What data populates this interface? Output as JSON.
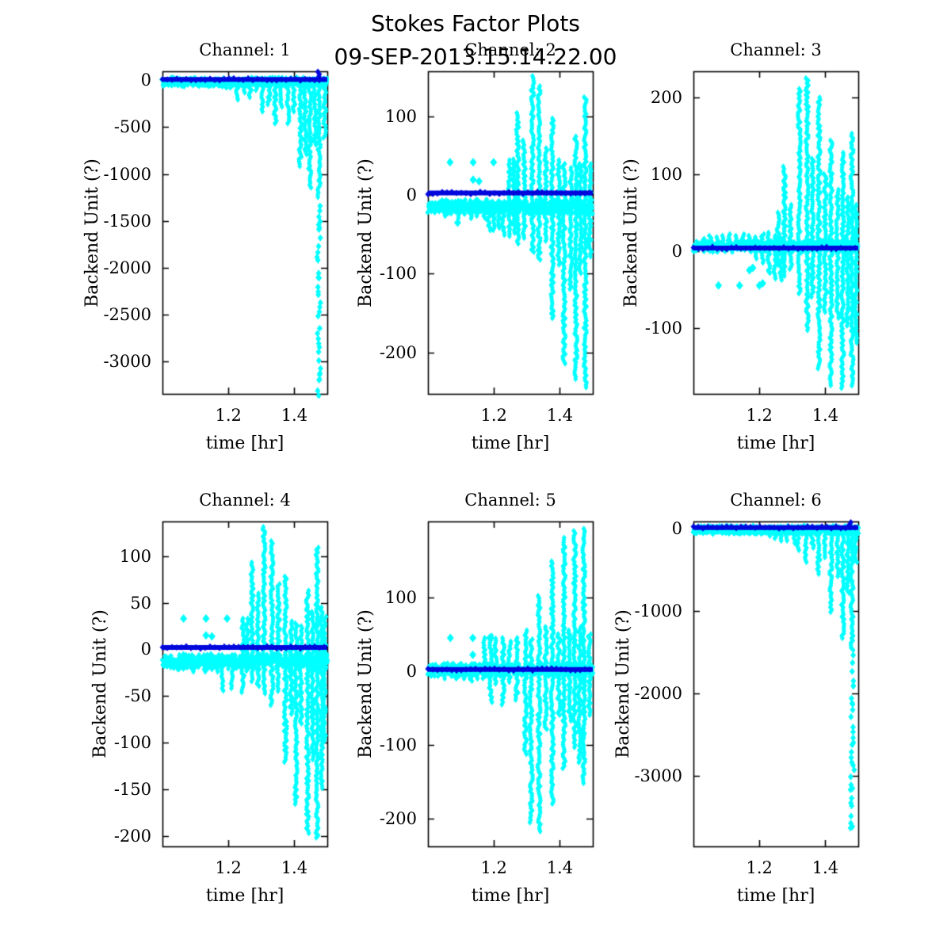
{
  "figure": {
    "title": "Stokes Factor Plots",
    "subtitle": "09-SEP-2013.15.14.22.00",
    "background": "#FFFFFF",
    "marker_color": "#00FFFF",
    "mean_line_color": "#0008DC",
    "axis_color": "#000000"
  },
  "chart_data": [
    {
      "type": "scatter",
      "title": "Channel: 1",
      "xlabel": "time [hr]",
      "ylabel": "Backend Unit (?)",
      "xlim": [
        1.0,
        1.5
      ],
      "ylim": [
        -3345,
        95
      ],
      "xticks": [
        1.2,
        1.4
      ],
      "yticks": [
        0,
        -500,
        -1000,
        -1500,
        -2000,
        -2500,
        -3000
      ],
      "baseline": {
        "y": -18,
        "amp": 14
      },
      "blue_line_y": 8,
      "blue_spikes": [
        [
          1.473,
          5,
          90
        ]
      ],
      "spikes": [
        [
          1.05,
          -55,
          -5
        ],
        [
          1.07,
          -45,
          -5
        ],
        [
          1.09,
          -62,
          -5
        ],
        [
          1.11,
          -55,
          -5
        ],
        [
          1.13,
          -68,
          -5
        ],
        [
          1.15,
          -60,
          -5
        ],
        [
          1.17,
          -72,
          -5
        ],
        [
          1.19,
          -85,
          -5
        ],
        [
          1.21,
          -95,
          -5
        ],
        [
          1.228,
          -220,
          -5
        ],
        [
          1.247,
          -150,
          -5
        ],
        [
          1.266,
          -185,
          -5
        ],
        [
          1.285,
          -130,
          -5
        ],
        [
          1.304,
          -345,
          -5
        ],
        [
          1.323,
          -260,
          -5
        ],
        [
          1.342,
          -470,
          -5
        ],
        [
          1.361,
          -305,
          -5
        ],
        [
          1.38,
          -480,
          -5
        ],
        [
          1.399,
          -350,
          -5
        ],
        [
          1.418,
          -925,
          -5
        ],
        [
          1.433,
          -815,
          -5
        ],
        [
          1.447,
          -1170,
          -5
        ],
        [
          1.462,
          -700,
          -5
        ],
        [
          1.475,
          -1255,
          -5
        ],
        [
          1.492,
          -620,
          -5
        ]
      ],
      "sparse": [
        [
          1.475,
          -3300,
          -1300,
          85
        ]
      ],
      "dots": []
    },
    {
      "type": "scatter",
      "title": "Channel: 2",
      "xlabel": "time [hr]",
      "ylabel": "Backend Unit (?)",
      "xlim": [
        1.0,
        1.5
      ],
      "ylim": [
        -253,
        158
      ],
      "xticks": [
        1.2,
        1.4
      ],
      "yticks": [
        100,
        0,
        -100,
        -200
      ],
      "baseline": {
        "y": -15,
        "amp": 6
      },
      "blue_line_y": 3,
      "blue_spikes": [],
      "spikes": [
        [
          1.05,
          -28,
          -8
        ],
        [
          1.07,
          -25,
          -8
        ],
        [
          1.09,
          -30,
          -8
        ],
        [
          1.11,
          -26,
          -8
        ],
        [
          1.13,
          -30,
          -8
        ],
        [
          1.15,
          -27,
          -8
        ],
        [
          1.17,
          -32,
          -8
        ],
        [
          1.185,
          -45,
          -8
        ],
        [
          1.2,
          -47,
          -8
        ],
        [
          1.215,
          -44,
          -8
        ],
        [
          1.228,
          -52,
          -8
        ],
        [
          1.247,
          -52,
          45
        ],
        [
          1.26,
          -50,
          46
        ],
        [
          1.272,
          -62,
          105
        ],
        [
          1.292,
          -55,
          70
        ],
        [
          1.317,
          -75,
          152
        ],
        [
          1.337,
          -85,
          139
        ],
        [
          1.357,
          -60,
          60
        ],
        [
          1.377,
          -158,
          98
        ],
        [
          1.397,
          -90,
          45
        ],
        [
          1.413,
          -215,
          40
        ],
        [
          1.433,
          -120,
          35
        ],
        [
          1.449,
          -237,
          75
        ],
        [
          1.463,
          -100,
          40
        ],
        [
          1.477,
          -247,
          125
        ],
        [
          1.492,
          -80,
          40
        ]
      ],
      "sparse": [],
      "dots": [
        [
          1.067,
          42
        ],
        [
          1.137,
          42
        ],
        [
          1.137,
          20
        ],
        [
          1.199,
          42
        ],
        [
          1.155,
          18
        ],
        [
          1.09,
          -35
        ]
      ]
    },
    {
      "type": "scatter",
      "title": "Channel: 3",
      "xlabel": "time [hr]",
      "ylabel": "Backend Unit (?)",
      "xlim": [
        1.0,
        1.5
      ],
      "ylim": [
        -186,
        234
      ],
      "xticks": [
        1.2,
        1.4
      ],
      "yticks": [
        200,
        100,
        0,
        -100
      ],
      "baseline": {
        "y": 6,
        "amp": 4
      },
      "blue_line_y": 4,
      "blue_spikes": [],
      "spikes": [
        [
          1.03,
          4,
          16
        ],
        [
          1.05,
          2,
          20
        ],
        [
          1.07,
          3,
          18
        ],
        [
          1.09,
          2,
          20
        ],
        [
          1.11,
          3,
          22
        ],
        [
          1.13,
          2,
          20
        ],
        [
          1.15,
          3,
          22
        ],
        [
          1.17,
          2,
          20
        ],
        [
          1.19,
          -12,
          18
        ],
        [
          1.21,
          -18,
          22
        ],
        [
          1.228,
          -30,
          24
        ],
        [
          1.247,
          -38,
          20
        ],
        [
          1.266,
          -40,
          18
        ],
        [
          1.257,
          -20,
          50
        ],
        [
          1.276,
          -35,
          110
        ],
        [
          1.295,
          -25,
          60
        ],
        [
          1.321,
          -57,
          211
        ],
        [
          1.345,
          -105,
          225
        ],
        [
          1.361,
          -60,
          120
        ],
        [
          1.381,
          -156,
          200
        ],
        [
          1.4,
          -80,
          100
        ],
        [
          1.417,
          -175,
          144
        ],
        [
          1.437,
          -90,
          80
        ],
        [
          1.453,
          -179,
          128
        ],
        [
          1.468,
          -100,
          70
        ],
        [
          1.481,
          -177,
          153
        ],
        [
          1.493,
          -120,
          60
        ]
      ],
      "sparse": [],
      "dots": [
        [
          1.076,
          -45
        ],
        [
          1.14,
          -45
        ],
        [
          1.2,
          -45
        ],
        [
          1.21,
          -42
        ],
        [
          1.17,
          -25
        ],
        [
          1.18,
          -22
        ]
      ]
    },
    {
      "type": "scatter",
      "title": "Channel: 4",
      "xlabel": "time [hr]",
      "ylabel": "Backend Unit (?)",
      "xlim": [
        1.0,
        1.5
      ],
      "ylim": [
        -211,
        137
      ],
      "xticks": [
        1.2,
        1.4
      ],
      "yticks": [
        100,
        50,
        0,
        -50,
        -100,
        -150,
        -200
      ],
      "baseline": {
        "y": -13,
        "amp": 5
      },
      "blue_line_y": 2,
      "blue_spikes": [],
      "spikes": [
        [
          1.05,
          -22,
          -6
        ],
        [
          1.07,
          -20,
          -6
        ],
        [
          1.09,
          -24,
          -6
        ],
        [
          1.11,
          -21,
          -6
        ],
        [
          1.13,
          -25,
          -6
        ],
        [
          1.15,
          -22,
          -6
        ],
        [
          1.17,
          -26,
          -6
        ],
        [
          1.18,
          -46,
          -6
        ],
        [
          1.212,
          -43,
          -6
        ],
        [
          1.244,
          -46,
          33
        ],
        [
          1.256,
          -25,
          33
        ],
        [
          1.272,
          -35,
          93
        ],
        [
          1.29,
          -40,
          60
        ],
        [
          1.308,
          -48,
          131
        ],
        [
          1.332,
          -60,
          116
        ],
        [
          1.352,
          -45,
          70
        ],
        [
          1.373,
          -121,
          78
        ],
        [
          1.39,
          -70,
          30
        ],
        [
          1.405,
          -166,
          28
        ],
        [
          1.42,
          -80,
          25
        ],
        [
          1.44,
          -198,
          63
        ],
        [
          1.455,
          -120,
          40
        ],
        [
          1.469,
          -203,
          109
        ],
        [
          1.483,
          -150,
          45
        ],
        [
          1.492,
          -100,
          35
        ]
      ],
      "sparse": [],
      "dots": [
        [
          1.064,
          33
        ],
        [
          1.132,
          33
        ],
        [
          1.132,
          15
        ],
        [
          1.196,
          33
        ],
        [
          1.15,
          14
        ]
      ]
    },
    {
      "type": "scatter",
      "title": "Channel: 5",
      "xlabel": "time [hr]",
      "ylabel": "Backend Unit (?)",
      "xlim": [
        1.0,
        1.5
      ],
      "ylim": [
        -238,
        203
      ],
      "xticks": [
        1.2,
        1.4
      ],
      "yticks": [
        100,
        0,
        -100,
        -200
      ],
      "baseline": {
        "y": 2,
        "amp": 5
      },
      "blue_line_y": 2,
      "blue_spikes": [],
      "spikes": [
        [
          1.05,
          -12,
          6
        ],
        [
          1.07,
          -10,
          6
        ],
        [
          1.09,
          -13,
          6
        ],
        [
          1.11,
          -11,
          6
        ],
        [
          1.13,
          -14,
          6
        ],
        [
          1.15,
          -12,
          6
        ],
        [
          1.17,
          -13,
          45
        ],
        [
          1.19,
          -45,
          48
        ],
        [
          1.205,
          -20,
          44
        ],
        [
          1.228,
          -48,
          45
        ],
        [
          1.247,
          -15,
          40
        ],
        [
          1.27,
          -40,
          45
        ],
        [
          1.296,
          -115,
          55
        ],
        [
          1.313,
          -206,
          43
        ],
        [
          1.337,
          -219,
          102
        ],
        [
          1.357,
          -80,
          60
        ],
        [
          1.377,
          -183,
          149
        ],
        [
          1.397,
          -60,
          50
        ],
        [
          1.413,
          -134,
          181
        ],
        [
          1.43,
          -70,
          55
        ],
        [
          1.445,
          -104,
          190
        ],
        [
          1.46,
          -125,
          60
        ],
        [
          1.473,
          -154,
          193
        ],
        [
          1.49,
          -60,
          50
        ]
      ],
      "sparse": [],
      "dots": [
        [
          1.068,
          45
        ],
        [
          1.136,
          45
        ],
        [
          1.136,
          22
        ],
        [
          1.187,
          45
        ]
      ]
    },
    {
      "type": "scatter",
      "title": "Channel: 6",
      "xlabel": "time [hr]",
      "ylabel": "Backend Unit (?)",
      "xlim": [
        1.0,
        1.5
      ],
      "ylim": [
        -3860,
        84
      ],
      "xticks": [
        1.2,
        1.4
      ],
      "yticks": [
        0,
        -1000,
        -2000,
        -3000
      ],
      "baseline": {
        "y": -18,
        "amp": 14
      },
      "blue_line_y": 10,
      "blue_spikes": [
        [
          1.475,
          5,
          75
        ]
      ],
      "spikes": [
        [
          1.05,
          -50,
          -5
        ],
        [
          1.07,
          -42,
          -5
        ],
        [
          1.09,
          -55,
          -5
        ],
        [
          1.11,
          -50,
          -5
        ],
        [
          1.13,
          -60,
          -5
        ],
        [
          1.15,
          -55,
          -5
        ],
        [
          1.17,
          -65,
          -5
        ],
        [
          1.19,
          -75,
          -5
        ],
        [
          1.21,
          -85,
          -5
        ],
        [
          1.228,
          -110,
          -5
        ],
        [
          1.247,
          -135,
          -5
        ],
        [
          1.266,
          -155,
          -5
        ],
        [
          1.285,
          -175,
          -5
        ],
        [
          1.304,
          -200,
          -5
        ],
        [
          1.317,
          -272,
          -5
        ],
        [
          1.342,
          -420,
          -5
        ],
        [
          1.361,
          -255,
          -5
        ],
        [
          1.38,
          -560,
          -5
        ],
        [
          1.399,
          -380,
          -5
        ],
        [
          1.417,
          -1040,
          -5
        ],
        [
          1.437,
          -610,
          -5
        ],
        [
          1.453,
          -1350,
          -5
        ],
        [
          1.468,
          -800,
          -5
        ],
        [
          1.481,
          -1500,
          -5
        ],
        [
          1.492,
          -420,
          -5
        ]
      ],
      "sparse": [
        [
          1.481,
          -3650,
          -1550,
          95
        ]
      ],
      "dots": []
    }
  ]
}
